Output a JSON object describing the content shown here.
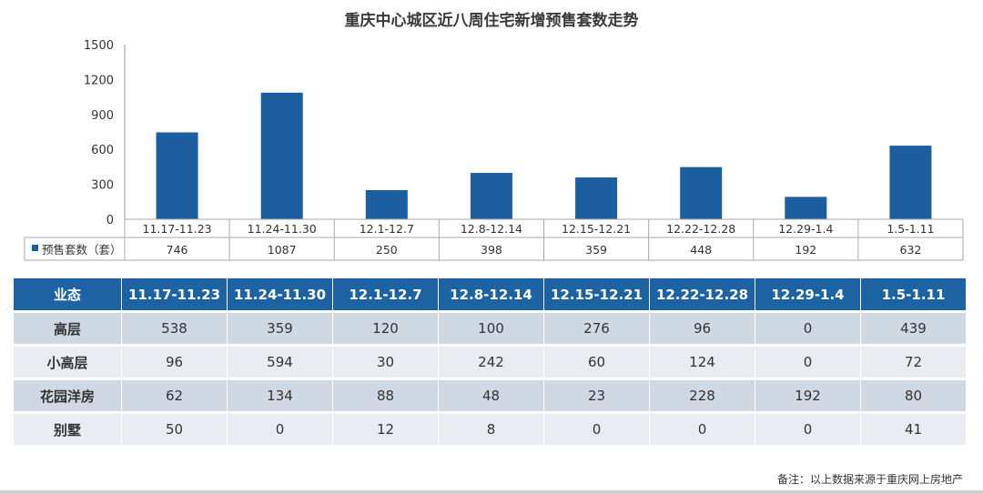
{
  "chart_data": {
    "type": "bar",
    "title": "重庆中心城区近八周住宅新增预售套数走势",
    "categories": [
      "11.17-11.23",
      "11.24-11.30",
      "12.1-12.7",
      "12.8-12.14",
      "12.15-12.21",
      "12.22-12.28",
      "12.29-1.4",
      "1.5-1.11"
    ],
    "series": [
      {
        "name": "预售套数（套）",
        "values": [
          746,
          1087,
          250,
          398,
          359,
          448,
          192,
          632
        ]
      }
    ],
    "ylim": [
      0,
      1500
    ],
    "yticks": [
      0,
      300,
      600,
      900,
      1200,
      1500
    ],
    "grid": false,
    "legend": "data-table-left",
    "colors": {
      "bar": "#1d5ea0"
    }
  },
  "table": {
    "header_label": "业态",
    "columns": [
      "11.17-11.23",
      "11.24-11.30",
      "12.1-12.7",
      "12.8-12.14",
      "12.15-12.21",
      "12.22-12.28",
      "12.29-1.4",
      "1.5-1.11"
    ],
    "rows": [
      {
        "label": "高层",
        "values": [
          538,
          359,
          120,
          100,
          276,
          96,
          0,
          439
        ]
      },
      {
        "label": "小高层",
        "values": [
          96,
          594,
          30,
          242,
          60,
          124,
          0,
          72
        ]
      },
      {
        "label": "花园洋房",
        "values": [
          62,
          134,
          88,
          48,
          23,
          228,
          192,
          80
        ]
      },
      {
        "label": "别墅",
        "values": [
          50,
          0,
          12,
          8,
          0,
          0,
          0,
          41
        ]
      }
    ],
    "colors": {
      "header": "#1d63a3",
      "row_odd": "#cfd8e3",
      "row_even": "#e9edf2"
    }
  },
  "footnote": "备注：以上数据来源于重庆网上房地产"
}
